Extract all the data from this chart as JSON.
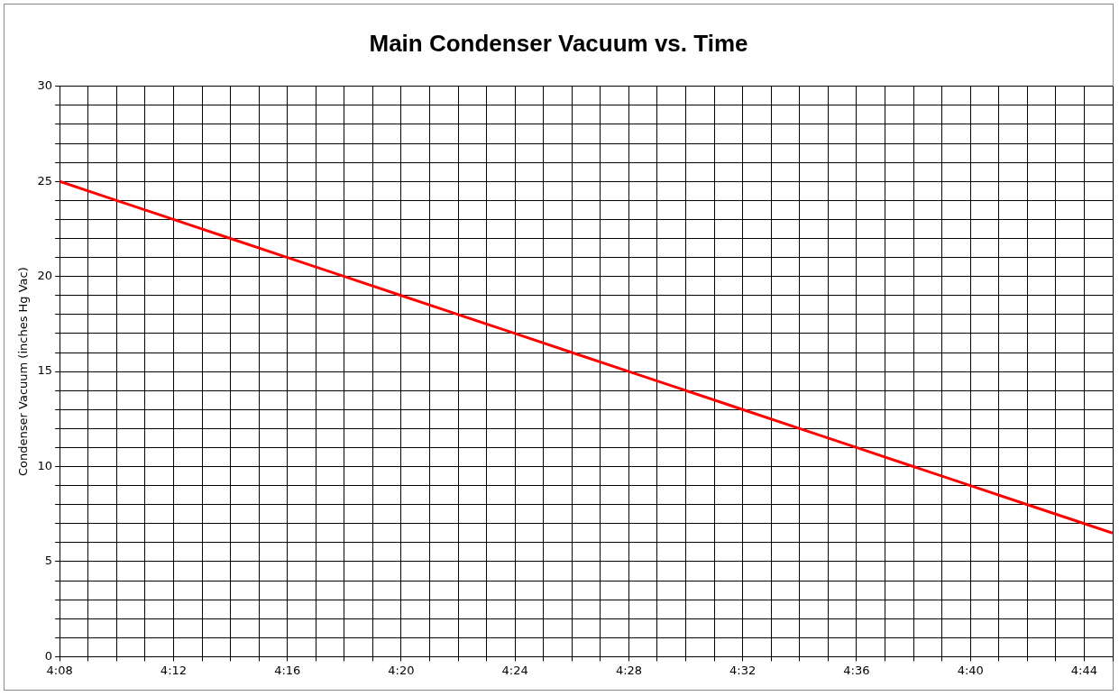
{
  "chart_data": {
    "type": "line",
    "title": "Main Condenser Vacuum vs. Time",
    "ylabel": "Condenser Vacuum (inches Hg Vac)",
    "x": [
      4.1333,
      4.1667,
      4.2,
      4.2333,
      4.2667,
      4.3,
      4.3333,
      4.3667,
      4.4,
      4.4333,
      4.4667,
      4.5,
      4.5333,
      4.5667,
      4.6,
      4.6333,
      4.6667,
      4.7,
      4.7333,
      4.75
    ],
    "series": [
      {
        "color": "#ff0000",
        "values": [
          25,
          24,
          23,
          22,
          21,
          20,
          19,
          18,
          17,
          16,
          15,
          14,
          13,
          12,
          11,
          10,
          9,
          8,
          7,
          6.5
        ]
      }
    ],
    "xlim": [
      4.1333,
      4.75
    ],
    "xticks": [
      {
        "value": 4.1333,
        "label": "4:08"
      },
      {
        "value": 4.15,
        "label": null
      },
      {
        "value": 4.1667,
        "label": null
      },
      {
        "value": 4.1833,
        "label": null
      },
      {
        "value": 4.2,
        "label": "4:12"
      },
      {
        "value": 4.2167,
        "label": null
      },
      {
        "value": 4.2333,
        "label": null
      },
      {
        "value": 4.25,
        "label": null
      },
      {
        "value": 4.2667,
        "label": "4:16"
      },
      {
        "value": 4.2833,
        "label": null
      },
      {
        "value": 4.3,
        "label": null
      },
      {
        "value": 4.3167,
        "label": null
      },
      {
        "value": 4.3333,
        "label": "4:20"
      },
      {
        "value": 4.35,
        "label": null
      },
      {
        "value": 4.3667,
        "label": null
      },
      {
        "value": 4.3833,
        "label": null
      },
      {
        "value": 4.4,
        "label": "4:24"
      },
      {
        "value": 4.4167,
        "label": null
      },
      {
        "value": 4.4333,
        "label": null
      },
      {
        "value": 4.45,
        "label": null
      },
      {
        "value": 4.4667,
        "label": "4:28"
      },
      {
        "value": 4.4833,
        "label": null
      },
      {
        "value": 4.5,
        "label": null
      },
      {
        "value": 4.5167,
        "label": null
      },
      {
        "value": 4.5333,
        "label": "4:32"
      },
      {
        "value": 4.55,
        "label": null
      },
      {
        "value": 4.5667,
        "label": null
      },
      {
        "value": 4.5833,
        "label": null
      },
      {
        "value": 4.6,
        "label": "4:36"
      },
      {
        "value": 4.6167,
        "label": null
      },
      {
        "value": 4.6333,
        "label": null
      },
      {
        "value": 4.65,
        "label": null
      },
      {
        "value": 4.6667,
        "label": "4:40"
      },
      {
        "value": 4.6833,
        "label": null
      },
      {
        "value": 4.7,
        "label": null
      },
      {
        "value": 4.7167,
        "label": null
      },
      {
        "value": 4.7333,
        "label": "4:44"
      },
      {
        "value": 4.75,
        "label": null
      }
    ],
    "ylim": [
      0,
      30
    ],
    "yticks": [
      0,
      {
        "value": 1,
        "label": null
      },
      {
        "value": 2,
        "label": null
      },
      {
        "value": 3,
        "label": null
      },
      {
        "value": 4,
        "label": null
      },
      5,
      {
        "value": 6,
        "label": null
      },
      {
        "value": 7,
        "label": null
      },
      {
        "value": 8,
        "label": null
      },
      {
        "value": 9,
        "label": null
      },
      10,
      {
        "value": 11,
        "label": null
      },
      {
        "value": 12,
        "label": null
      },
      {
        "value": 13,
        "label": null
      },
      {
        "value": 14,
        "label": null
      },
      15,
      {
        "value": 16,
        "label": null
      },
      {
        "value": 17,
        "label": null
      },
      {
        "value": 18,
        "label": null
      },
      {
        "value": 19,
        "label": null
      },
      20,
      {
        "value": 21,
        "label": null
      },
      {
        "value": 22,
        "label": null
      },
      {
        "value": 23,
        "label": null
      },
      {
        "value": 24,
        "label": null
      },
      25,
      {
        "value": 26,
        "label": null
      },
      {
        "value": 27,
        "label": null
      },
      {
        "value": 28,
        "label": null
      },
      {
        "value": 29,
        "label": null
      },
      30
    ],
    "grid": true,
    "marker": "none",
    "line_style": "solid"
  }
}
